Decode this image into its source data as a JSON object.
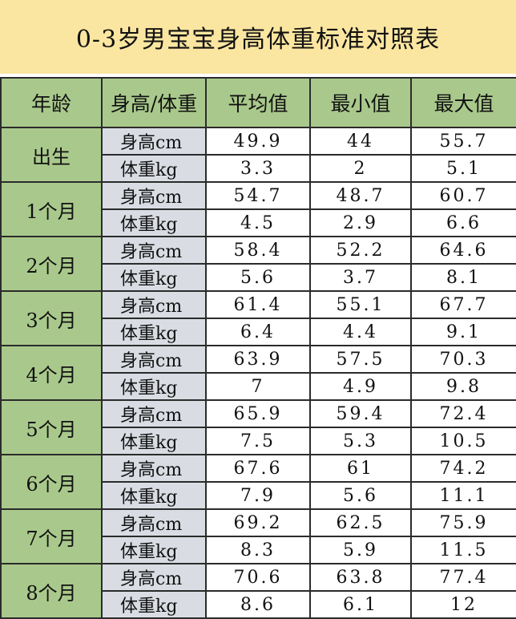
{
  "title": "0-3岁男宝宝身高体重标准对照表",
  "headers": {
    "age": "年龄",
    "measure": "身高/体重",
    "avg": "平均值",
    "min": "最小值",
    "max": "最大值"
  },
  "rows": [
    {
      "age": "出生",
      "height": {
        "label": "身高cm",
        "avg": "49.9",
        "min": "44",
        "max": "55.7"
      },
      "weight": {
        "label": "体重kg",
        "avg": "3.3",
        "min": "2",
        "max": "5.1"
      }
    },
    {
      "age": "1个月",
      "height": {
        "label": "身高cm",
        "avg": "54.7",
        "min": "48.7",
        "max": "60.7"
      },
      "weight": {
        "label": "体重kg",
        "avg": "4.5",
        "min": "2.9",
        "max": "6.6"
      }
    },
    {
      "age": "2个月",
      "height": {
        "label": "身高cm",
        "avg": "58.4",
        "min": "52.2",
        "max": "64.6"
      },
      "weight": {
        "label": "体重kg",
        "avg": "5.6",
        "min": "3.7",
        "max": "8.1"
      }
    },
    {
      "age": "3个月",
      "height": {
        "label": "身高cm",
        "avg": "61.4",
        "min": "55.1",
        "max": "67.7"
      },
      "weight": {
        "label": "体重kg",
        "avg": "6.4",
        "min": "4.4",
        "max": "9.1"
      }
    },
    {
      "age": "4个月",
      "height": {
        "label": "身高cm",
        "avg": "63.9",
        "min": "57.5",
        "max": "70.3"
      },
      "weight": {
        "label": "体重kg",
        "avg": "7",
        "min": "4.9",
        "max": "9.8"
      }
    },
    {
      "age": "5个月",
      "height": {
        "label": "身高cm",
        "avg": "65.9",
        "min": "59.4",
        "max": "72.4"
      },
      "weight": {
        "label": "体重kg",
        "avg": "7.5",
        "min": "5.3",
        "max": "10.5"
      }
    },
    {
      "age": "6个月",
      "height": {
        "label": "身高cm",
        "avg": "67.6",
        "min": "61",
        "max": "74.2"
      },
      "weight": {
        "label": "体重kg",
        "avg": "7.9",
        "min": "5.6",
        "max": "11.1"
      }
    },
    {
      "age": "7个月",
      "height": {
        "label": "身高cm",
        "avg": "69.2",
        "min": "62.5",
        "max": "75.9"
      },
      "weight": {
        "label": "体重kg",
        "avg": "8.3",
        "min": "5.9",
        "max": "11.5"
      }
    },
    {
      "age": "8个月",
      "height": {
        "label": "身高cm",
        "avg": "70.6",
        "min": "63.8",
        "max": "77.4"
      },
      "weight": {
        "label": "体重kg",
        "avg": "8.6",
        "min": "6.1",
        "max": "12"
      }
    }
  ],
  "colors": {
    "title_bg": "#fbe6a1",
    "header_bg": "#a9c98c",
    "measure_bg": "#d9dde3",
    "value_bg": "#ffffff",
    "border": "#2b2b2b"
  }
}
